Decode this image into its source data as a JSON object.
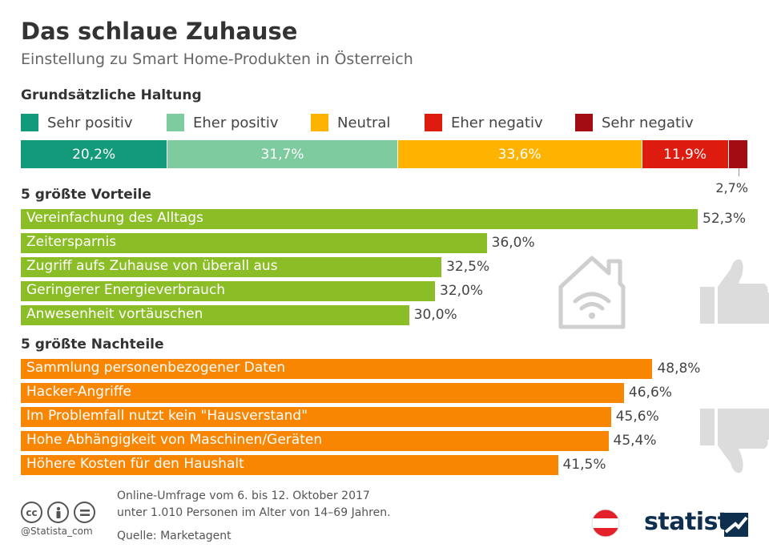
{
  "title": "Das schlaue Zuhause",
  "subtitle": "Einstellung zu Smart Home-Produkten in Österreich",
  "footer": {
    "note_line1": "Online-Umfrage vom 6. bis 12. Oktober 2017",
    "note_line2": "unter 1.010 Personen im Alter von 14–69 Jahren.",
    "source": "Quelle: Marketagent",
    "handle": "@Statista_com",
    "brand": "statista"
  },
  "icons": [
    "cc-icon",
    "by-icon",
    "nd-icon",
    "austria-flag-icon",
    "statista-logo-icon",
    "smart-home-icon",
    "thumbs-up-icon",
    "thumbs-down-icon"
  ],
  "chart_data": [
    {
      "type": "bar",
      "stacked": true,
      "orientation": "horizontal",
      "title": "Grundsätzliche Haltung",
      "legend_placement": "top",
      "series": [
        {
          "name": "Sehr positiv",
          "value": 20.2,
          "label": "20,2%",
          "color": "#129a7a"
        },
        {
          "name": "Eher positiv",
          "value": 31.7,
          "label": "31,7%",
          "color": "#7dcb9e"
        },
        {
          "name": "Neutral",
          "value": 33.6,
          "label": "33,6%",
          "color": "#fdb300"
        },
        {
          "name": "Eher negativ",
          "value": 11.9,
          "label": "11,9%",
          "color": "#dd1b0e"
        },
        {
          "name": "Sehr negativ",
          "value": 2.7,
          "label": "2,7%",
          "color": "#a30c12"
        }
      ]
    },
    {
      "type": "bar",
      "orientation": "horizontal",
      "title": "5 größte Vorteile",
      "color": "#8bbd27",
      "xlim": [
        0,
        52.3
      ],
      "categories": [
        "Vereinfachung des Alltags",
        "Zeitersparnis",
        "Zugriff aufs Zuhause von überall aus",
        "Geringerer Energieverbrauch",
        "Anwesenheit vortäuschen"
      ],
      "values": [
        52.3,
        36.0,
        32.5,
        32.0,
        30.0
      ],
      "labels": [
        "52,3%",
        "36,0%",
        "32,5%",
        "32,0%",
        "30,0%"
      ]
    },
    {
      "type": "bar",
      "orientation": "horizontal",
      "title": "5 größte Nachteile",
      "color": "#f88603",
      "xlim": [
        0,
        52.3
      ],
      "categories": [
        "Sammlung personenbezogener Daten",
        "Hacker-Angriffe",
        "Im Problemfall nutzt kein \"Hausverstand\"",
        "Hohe Abhängigkeit von Maschinen/Geräten",
        "Höhere Kosten für den Haushalt"
      ],
      "values": [
        48.8,
        46.6,
        45.6,
        45.4,
        41.5
      ],
      "labels": [
        "48,8%",
        "46,6%",
        "45,6%",
        "45,4%",
        "41,5%"
      ]
    }
  ]
}
